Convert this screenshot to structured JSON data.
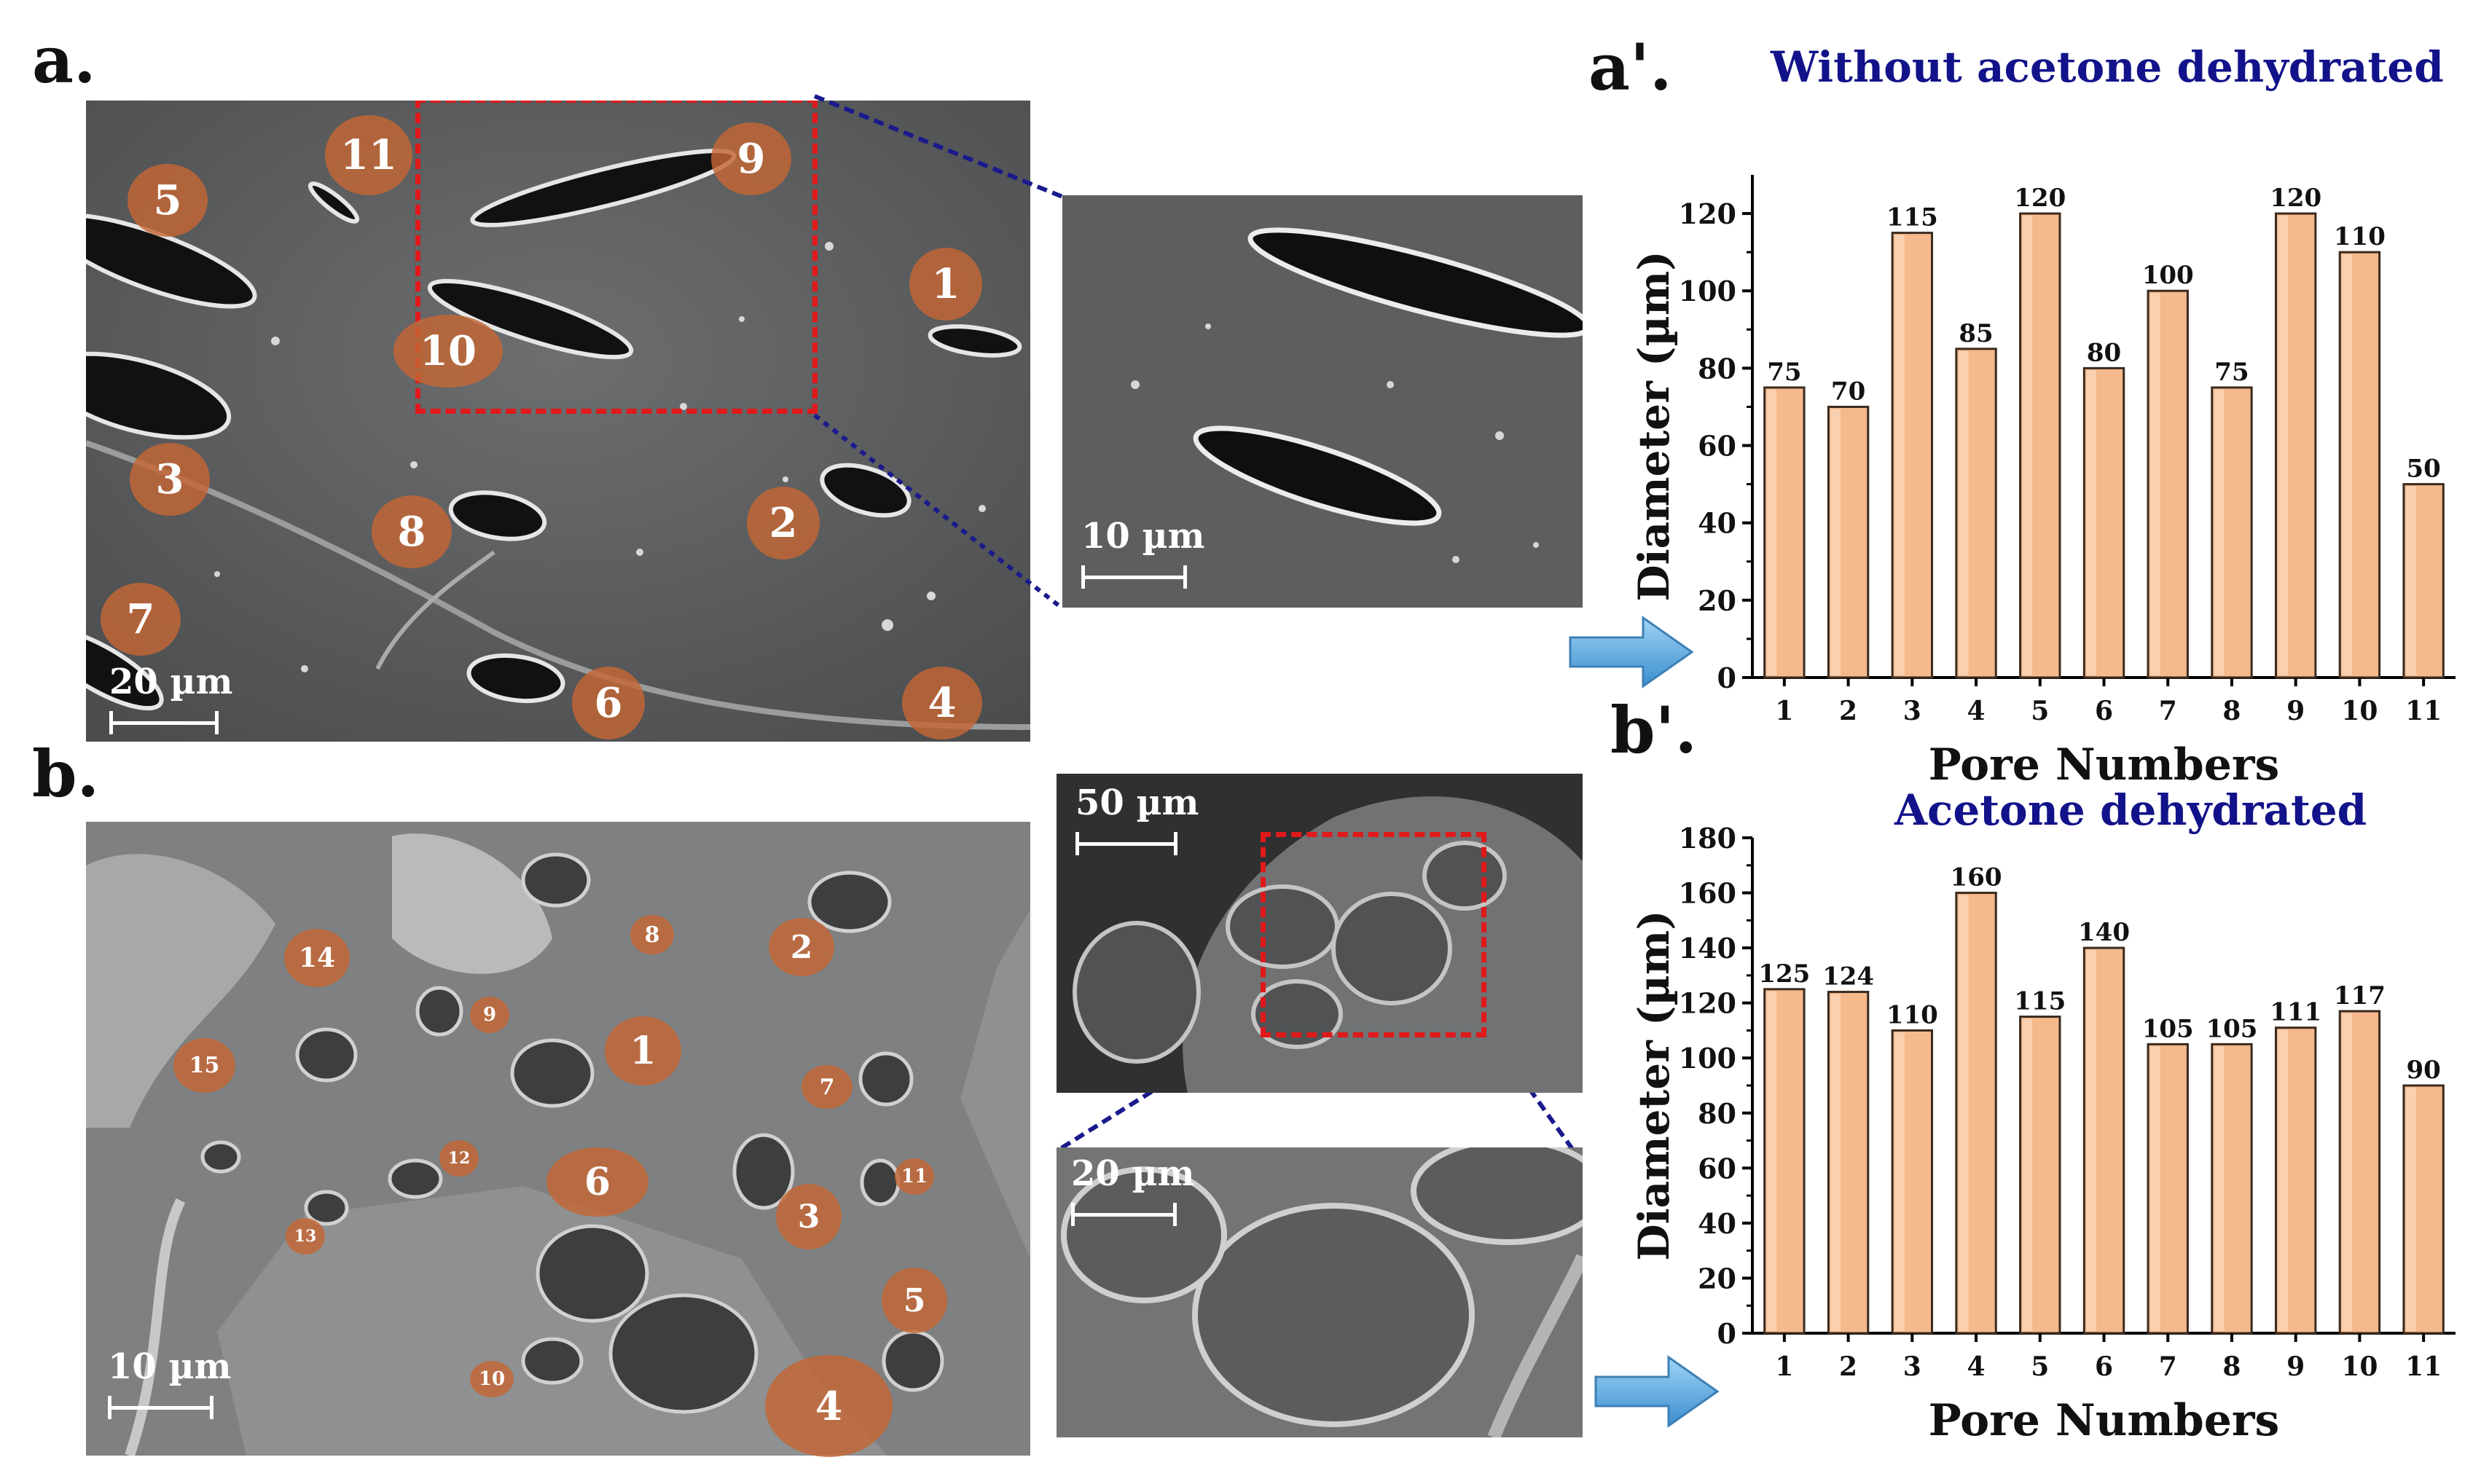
{
  "labels": {
    "panel_a": "a.",
    "panel_b": "b.",
    "panel_a_prime": "a'.",
    "panel_b_prime": "b'."
  },
  "scale_bars": {
    "a_main": "20 µm",
    "a_zoom": "10 µm",
    "b_main": "10 µm",
    "b_top": "50 µm",
    "b_zoom": "20 µm"
  },
  "pore_markers_a": [
    "1",
    "2",
    "3",
    "4",
    "5",
    "6",
    "7",
    "8",
    "9",
    "10",
    "11"
  ],
  "pore_markers_b": [
    "1",
    "2",
    "3",
    "4",
    "5",
    "6",
    "7",
    "8",
    "9",
    "10",
    "11",
    "12",
    "13",
    "14",
    "15"
  ],
  "colors": {
    "bar_fill": "#f5b98c",
    "bar_edge": "#3a2a1e",
    "title_blue": "#12128a",
    "marker": "#c46634",
    "zoom_box": "#e0191a",
    "connector": "#1a1a8c",
    "arrow": "#6ab8e8"
  },
  "icons": [
    "right-arrow-icon"
  ],
  "chart_data": [
    {
      "type": "bar",
      "title": "Without acetone dehydrated",
      "xlabel": "Pore Numbers",
      "ylabel": "Diameter (µm)",
      "categories": [
        "1",
        "2",
        "3",
        "4",
        "5",
        "6",
        "7",
        "8",
        "9",
        "10",
        "11"
      ],
      "values": [
        75,
        70,
        115,
        85,
        120,
        80,
        100,
        75,
        120,
        110,
        50
      ],
      "ylim": [
        0,
        130
      ],
      "yticks": [
        0,
        20,
        40,
        60,
        80,
        100,
        120
      ],
      "grid": false
    },
    {
      "type": "bar",
      "title": "Acetone dehydrated",
      "xlabel": "Pore Numbers",
      "ylabel": "Diameter (µm)",
      "categories": [
        "1",
        "2",
        "3",
        "4",
        "5",
        "6",
        "7",
        "8",
        "9",
        "10",
        "11"
      ],
      "values": [
        125,
        124,
        110,
        160,
        115,
        140,
        105,
        105,
        111,
        117,
        90
      ],
      "ylim": [
        0,
        180
      ],
      "yticks": [
        0,
        20,
        40,
        60,
        80,
        100,
        120,
        140,
        160,
        180
      ],
      "grid": false
    }
  ]
}
